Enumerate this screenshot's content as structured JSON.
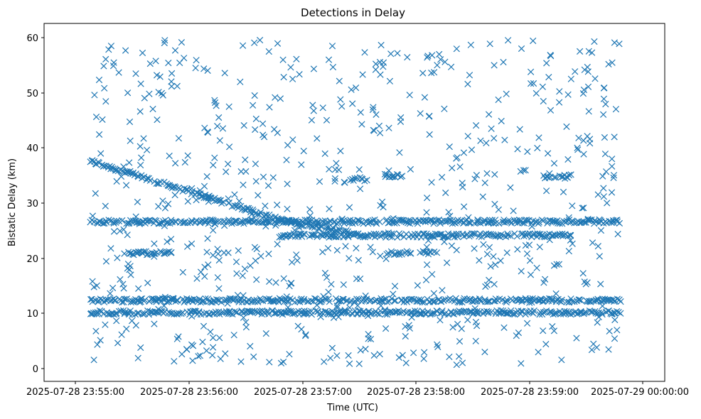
{
  "chart_data": {
    "type": "scatter",
    "title": "Detections in Delay",
    "xlabel": "Time (UTC)",
    "ylabel": "Bistatic Delay (km)",
    "marker": "x",
    "color": "#1f77b4",
    "grid": false,
    "legend": "none",
    "x_ticks": [
      "2025-07-28 23:55:00",
      "2025-07-28 23:56:00",
      "2025-07-28 23:57:00",
      "2025-07-28 23:58:00",
      "2025-07-28 23:59:00",
      "2025-07-29 00:00:00"
    ],
    "y_ticks": [
      "0",
      "10",
      "20",
      "30",
      "40",
      "50",
      "60"
    ],
    "x_range_seconds_after_2025-07-28_23:55:00": [
      -27,
      323
    ],
    "ylim": [
      -2.5,
      62.5
    ],
    "data_span": {
      "start": "2025-07-28 23:54:59",
      "end": "2025-07-28 23:59:58"
    },
    "tracks": [
      {
        "start": "2025-07-28 23:54:59",
        "end": "2025-07-28 23:56:50",
        "delay_start_km": 37.5,
        "delay_end_km": 26.5,
        "note": "descending track"
      },
      {
        "start": "2025-07-28 23:56:50",
        "end": "2025-07-28 23:57:25",
        "delay_start_km": 26.5,
        "delay_end_km": 24.5
      },
      {
        "start": "2025-07-28 23:54:59",
        "end": "2025-07-28 23:59:58",
        "delay_km": 26.5
      },
      {
        "start": "2025-07-28 23:56:45",
        "end": "2025-07-28 23:59:30",
        "delay_km": 24.0
      },
      {
        "start": "2025-07-28 23:54:59",
        "end": "2025-07-28 23:59:58",
        "delay_km": 12.2
      },
      {
        "start": "2025-07-28 23:54:59",
        "end": "2025-07-28 23:59:58",
        "delay_km": 10.0
      },
      {
        "start": "2025-07-28 23:55:20",
        "end": "2025-07-28 23:55:45",
        "delay_km": 20.8
      },
      {
        "start": "2025-07-28 23:57:45",
        "end": "2025-07-28 23:58:00",
        "delay_km": 20.8
      },
      {
        "start": "2025-07-28 23:58:05",
        "end": "2025-07-28 23:58:15",
        "delay_km": 20.8
      },
      {
        "start": "2025-07-28 23:59:15",
        "end": "2025-07-28 23:59:30",
        "delay_km": 34.7
      },
      {
        "start": "2025-07-28 23:57:25",
        "end": "2025-07-28 23:57:35",
        "delay_km": 34.2
      },
      {
        "start": "2025-07-28 23:57:45",
        "end": "2025-07-28 23:57:55",
        "delay_km": 34.8
      }
    ],
    "background_detections": {
      "count_approx": 700,
      "distribution": "uniform",
      "delay_range_km": [
        0.5,
        60
      ]
    }
  }
}
